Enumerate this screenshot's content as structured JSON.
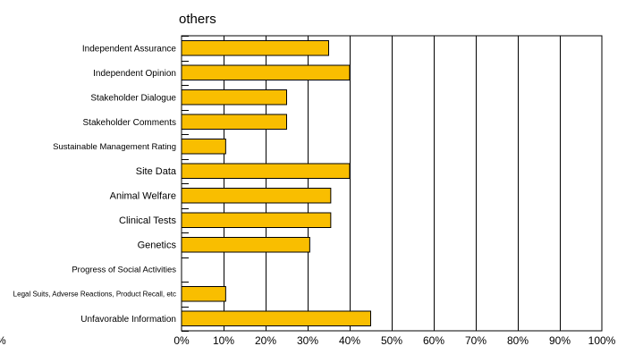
{
  "chart_data": {
    "type": "bar",
    "orientation": "horizontal",
    "title": "others",
    "xlabel": "",
    "ylabel": "",
    "categories": [
      "Independent Assurance",
      "Independent Opinion",
      "Stakeholder Dialogue",
      "Stakeholder Comments",
      "Sustainable Management Rating",
      "Site Data",
      "Animal Welfare",
      "Clinical Tests",
      "Genetics",
      "Progress of Social Activities",
      "Legal Suits, Adverse Reactions, Product Recall, etc",
      "Unfavorable Information"
    ],
    "values": [
      35,
      40,
      25,
      25,
      10.5,
      40,
      35.5,
      35.5,
      30.5,
      0,
      10.5,
      45
    ],
    "xlim": [
      0,
      100
    ],
    "xticks": [
      "0%",
      "10%",
      "20%",
      "30%",
      "40%",
      "50%",
      "60%",
      "70%",
      "80%",
      "90%",
      "100%"
    ],
    "left_edge_label": "%",
    "grid": "vertical",
    "legend": "none",
    "colors": {
      "bar": "#F9BE00",
      "bar_edge": "#000000",
      "grid": "#000000"
    }
  }
}
